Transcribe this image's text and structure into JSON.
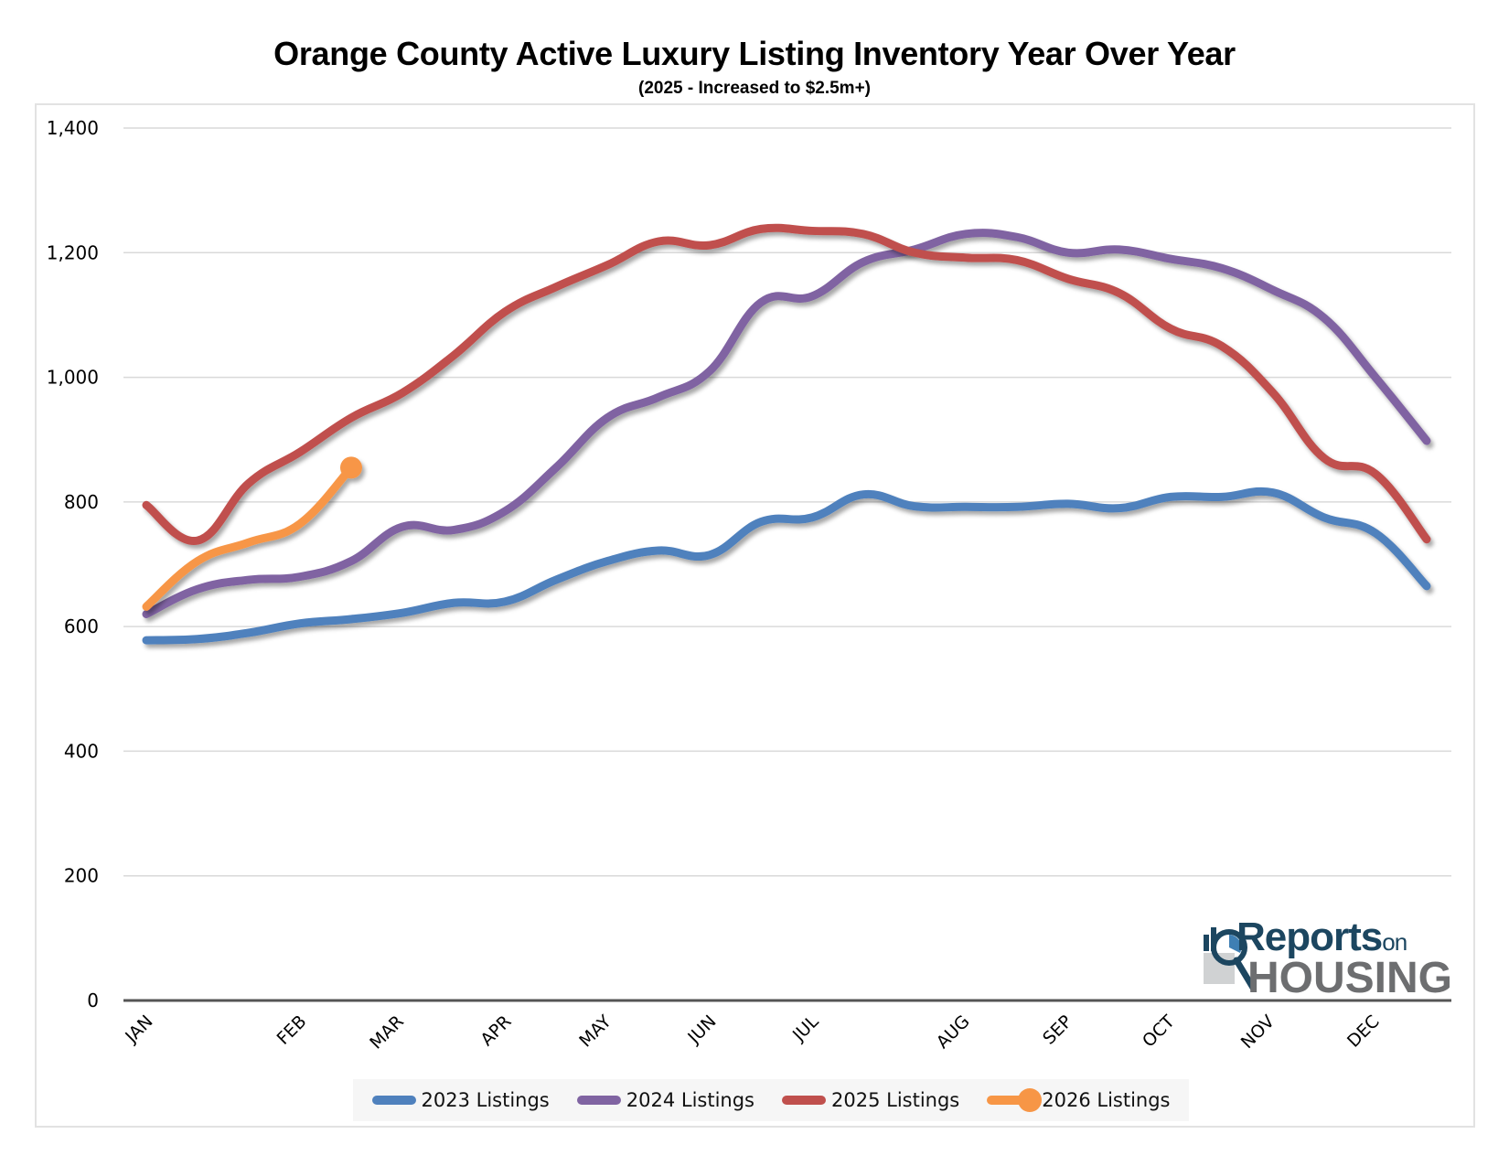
{
  "chart_data": {
    "type": "line",
    "title": "Orange County Active Luxury Listing Inventory Year Over Year",
    "subtitle": "(2025 - Increased to $2.5m+)",
    "xlabel": "",
    "ylabel": "",
    "ylim": [
      0,
      1400
    ],
    "yticks": [
      0,
      200,
      400,
      600,
      800,
      1000,
      1200,
      1400
    ],
    "ytick_labels": [
      "0",
      "200",
      "400",
      "600",
      "800",
      "1,000",
      "1,200",
      "1,400"
    ],
    "grid": true,
    "legend_position": "bottom",
    "x_points_per_year": 26,
    "month_labels": [
      {
        "label": "JAN",
        "pos": 0.0
      },
      {
        "label": "FEB",
        "pos": 3.0
      },
      {
        "label": "MAR",
        "pos": 4.9
      },
      {
        "label": "APR",
        "pos": 7.0
      },
      {
        "label": "MAY",
        "pos": 8.95
      },
      {
        "label": "JUN",
        "pos": 11.0
      },
      {
        "label": "JUL",
        "pos": 13.0
      },
      {
        "label": "AUG",
        "pos": 15.95
      },
      {
        "label": "SEP",
        "pos": 17.95
      },
      {
        "label": "OCT",
        "pos": 19.95
      },
      {
        "label": "NOV",
        "pos": 21.9
      },
      {
        "label": "DEC",
        "pos": 23.95
      }
    ],
    "series": [
      {
        "name": "2023 Listings",
        "color": "#4F81BD",
        "marker_end": false,
        "values": [
          578,
          580,
          590,
          605,
          612,
          622,
          638,
          640,
          675,
          705,
          722,
          715,
          768,
          775,
          812,
          793,
          792,
          792,
          797,
          790,
          808,
          808,
          815,
          775,
          750,
          665
        ]
      },
      {
        "name": "2024 Listings",
        "color": "#8064A2",
        "marker_end": false,
        "values": [
          620,
          660,
          675,
          680,
          705,
          760,
          755,
          785,
          855,
          935,
          968,
          1010,
          1120,
          1130,
          1185,
          1205,
          1230,
          1225,
          1200,
          1205,
          1190,
          1175,
          1140,
          1095,
          1000,
          898
        ]
      },
      {
        "name": "2025 Listings",
        "color": "#C0504D",
        "marker_end": false,
        "values": [
          795,
          738,
          830,
          880,
          935,
          975,
          1035,
          1105,
          1145,
          1180,
          1218,
          1212,
          1238,
          1235,
          1230,
          1200,
          1192,
          1188,
          1158,
          1135,
          1078,
          1050,
          975,
          870,
          845,
          740
        ]
      },
      {
        "name": "2026 Listings",
        "color": "#F79646",
        "marker_end": true,
        "values": [
          632,
          705,
          735,
          765,
          855
        ]
      }
    ]
  },
  "logo": {
    "reports": "Reports",
    "on": "on",
    "housing": "HOUSING"
  }
}
